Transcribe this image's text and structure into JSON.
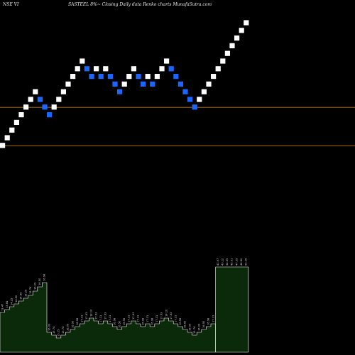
{
  "header": {
    "exchange_symbol": "NSE VI",
    "title": "SASTEEL  8%~  Closing Daily data  Renko  charts MunafaSutra.com"
  },
  "colors": {
    "background": "#000000",
    "up_brick": "#ffffff",
    "down_brick": "#1a66ff",
    "reference_line": "#b8762a",
    "volume_fill": "#0a2a0a",
    "volume_stroke": "#ffffff"
  },
  "chart_data": {
    "type": "renko",
    "price_axis_shown": false,
    "reference_lines": [
      {
        "level": 6.0
      },
      {
        "level": 1.0
      }
    ],
    "bricks": [
      {
        "dir": "up",
        "level": 1
      },
      {
        "dir": "up",
        "level": 2
      },
      {
        "dir": "up",
        "level": 3
      },
      {
        "dir": "up",
        "level": 4
      },
      {
        "dir": "up",
        "level": 5
      },
      {
        "dir": "up",
        "level": 6
      },
      {
        "dir": "up",
        "level": 7
      },
      {
        "dir": "up",
        "level": 8
      },
      {
        "dir": "down",
        "level": 7
      },
      {
        "dir": "down",
        "level": 6
      },
      {
        "dir": "down",
        "level": 5
      },
      {
        "dir": "up",
        "level": 6
      },
      {
        "dir": "up",
        "level": 7
      },
      {
        "dir": "up",
        "level": 8
      },
      {
        "dir": "up",
        "level": 9
      },
      {
        "dir": "up",
        "level": 10
      },
      {
        "dir": "up",
        "level": 11
      },
      {
        "dir": "up",
        "level": 12
      },
      {
        "dir": "down",
        "level": 11
      },
      {
        "dir": "down",
        "level": 10
      },
      {
        "dir": "up",
        "level": 11
      },
      {
        "dir": "down",
        "level": 10
      },
      {
        "dir": "up",
        "level": 11
      },
      {
        "dir": "down",
        "level": 10
      },
      {
        "dir": "down",
        "level": 9
      },
      {
        "dir": "down",
        "level": 8
      },
      {
        "dir": "up",
        "level": 9
      },
      {
        "dir": "up",
        "level": 10
      },
      {
        "dir": "up",
        "level": 11
      },
      {
        "dir": "down",
        "level": 10
      },
      {
        "dir": "down",
        "level": 9
      },
      {
        "dir": "up",
        "level": 10
      },
      {
        "dir": "down",
        "level": 9
      },
      {
        "dir": "up",
        "level": 10
      },
      {
        "dir": "up",
        "level": 11
      },
      {
        "dir": "up",
        "level": 12
      },
      {
        "dir": "down",
        "level": 11
      },
      {
        "dir": "down",
        "level": 10
      },
      {
        "dir": "down",
        "level": 9
      },
      {
        "dir": "down",
        "level": 8
      },
      {
        "dir": "down",
        "level": 7
      },
      {
        "dir": "down",
        "level": 6
      },
      {
        "dir": "up",
        "level": 7
      },
      {
        "dir": "up",
        "level": 8
      },
      {
        "dir": "up",
        "level": 9
      },
      {
        "dir": "up",
        "level": 10
      },
      {
        "dir": "up",
        "level": 11
      },
      {
        "dir": "up",
        "level": 12
      },
      {
        "dir": "up",
        "level": 13
      },
      {
        "dir": "up",
        "level": 14
      },
      {
        "dir": "up",
        "level": 15
      },
      {
        "dir": "up",
        "level": 16
      },
      {
        "dir": "up",
        "level": 17
      }
    ],
    "volume": [
      {
        "v": 56,
        "label": "13.47"
      },
      {
        "v": 60,
        "label": "13.84"
      },
      {
        "v": 64,
        "label": "14.25"
      },
      {
        "v": 68,
        "label": "14.50"
      },
      {
        "v": 72,
        "label": "14.89"
      },
      {
        "v": 76,
        "label": "15.25"
      },
      {
        "v": 80,
        "label": "15.74"
      },
      {
        "v": 86,
        "label": "16.09"
      },
      {
        "v": 92,
        "label": "16.50"
      },
      {
        "v": 98,
        "label": "16.98"
      },
      {
        "v": 28,
        "label": "16.09"
      },
      {
        "v": 24,
        "label": "15.74"
      },
      {
        "v": 20,
        "label": "15.25"
      },
      {
        "v": 24,
        "label": "15.74"
      },
      {
        "v": 28,
        "label": "16.09"
      },
      {
        "v": 32,
        "label": "16.50"
      },
      {
        "v": 36,
        "label": "16.98"
      },
      {
        "v": 40,
        "label": "17.31"
      },
      {
        "v": 44,
        "label": "17.63"
      },
      {
        "v": 48,
        "label": "18.10"
      },
      {
        "v": 44,
        "label": "17.63"
      },
      {
        "v": 40,
        "label": "17.31"
      },
      {
        "v": 44,
        "label": "17.63"
      },
      {
        "v": 40,
        "label": "17.31"
      },
      {
        "v": 36,
        "label": "16.98"
      },
      {
        "v": 32,
        "label": "16.50"
      },
      {
        "v": 36,
        "label": "16.98"
      },
      {
        "v": 40,
        "label": "17.31"
      },
      {
        "v": 44,
        "label": "17.63"
      },
      {
        "v": 40,
        "label": "17.31"
      },
      {
        "v": 36,
        "label": "16.98"
      },
      {
        "v": 40,
        "label": "17.31"
      },
      {
        "v": 36,
        "label": "16.98"
      },
      {
        "v": 40,
        "label": "17.31"
      },
      {
        "v": 44,
        "label": "17.63"
      },
      {
        "v": 48,
        "label": "18.10"
      },
      {
        "v": 44,
        "label": "17.63"
      },
      {
        "v": 40,
        "label": "17.31"
      },
      {
        "v": 36,
        "label": "16.98"
      },
      {
        "v": 32,
        "label": "16.50"
      },
      {
        "v": 28,
        "label": "16.09"
      },
      {
        "v": 24,
        "label": "15.74"
      },
      {
        "v": 28,
        "label": "16.09"
      },
      {
        "v": 32,
        "label": "16.50"
      },
      {
        "v": 36,
        "label": "16.98"
      },
      {
        "v": 40,
        "label": "17.31"
      },
      {
        "v": 120,
        "label": "41.97"
      },
      {
        "v": 120,
        "label": "43.22"
      },
      {
        "v": 120,
        "label": "44.55"
      },
      {
        "v": 120,
        "label": "45.91"
      },
      {
        "v": 120,
        "label": "47.35"
      },
      {
        "v": 120,
        "label": "48.80"
      },
      {
        "v": 120,
        "label": "50.26"
      }
    ]
  }
}
